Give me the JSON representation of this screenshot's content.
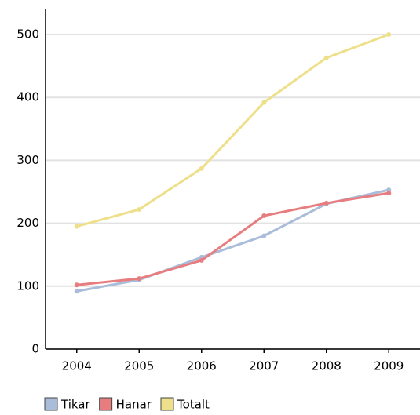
{
  "chart_data": {
    "type": "line",
    "categories": [
      "2004",
      "2005",
      "2006",
      "2007",
      "2008",
      "2009"
    ],
    "series": [
      {
        "name": "Tikar",
        "color": "#a9bcd9",
        "values": [
          92,
          110,
          146,
          180,
          231,
          253
        ]
      },
      {
        "name": "Hanar",
        "color": "#e87d7f",
        "values": [
          102,
          112,
          141,
          212,
          232,
          248
        ]
      },
      {
        "name": "Totalt",
        "color": "#eee08a",
        "values": [
          195,
          222,
          287,
          392,
          463,
          500
        ]
      }
    ],
    "ylim": [
      0,
      500
    ],
    "yticks": [
      0,
      100,
      200,
      300,
      400,
      500
    ],
    "grid": true,
    "legend": "bottom-left"
  }
}
